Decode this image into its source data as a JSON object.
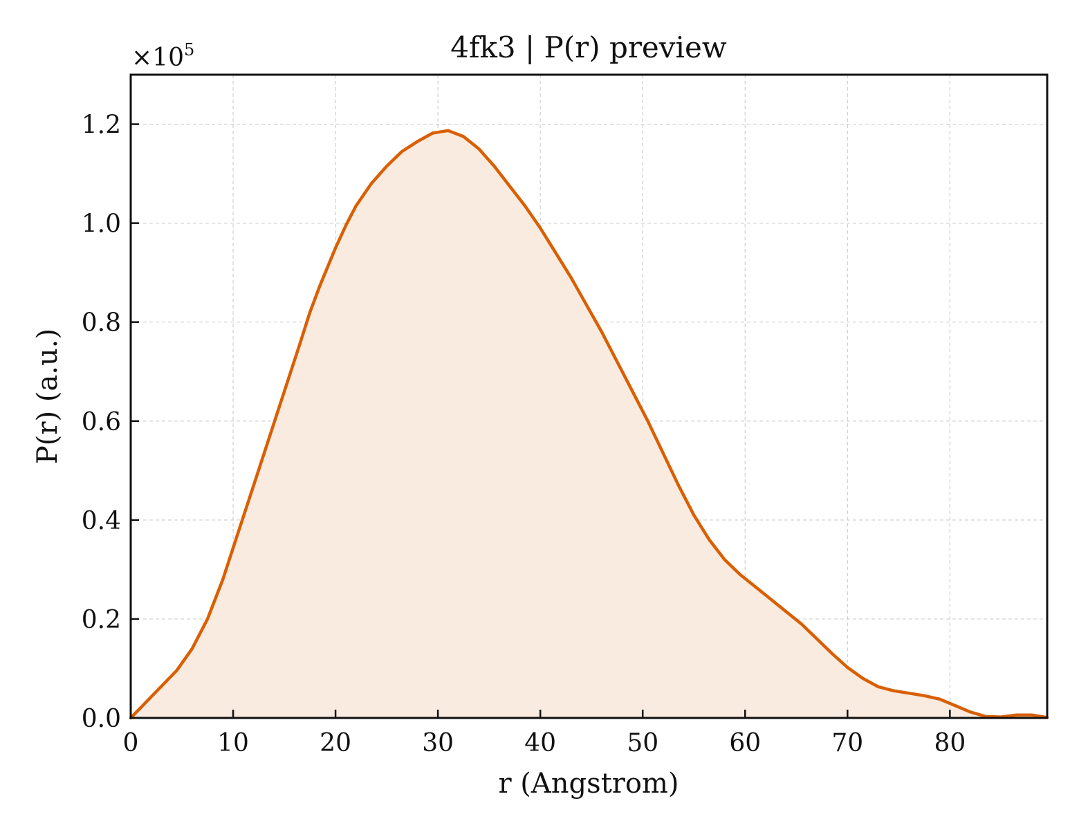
{
  "chart_data": {
    "type": "area",
    "title": "4fk3 | P(r) preview",
    "xlabel": "r (Angstrom)",
    "ylabel": "P(r) (a.u.)",
    "y_scale_label": "×10",
    "y_scale_exponent": "5",
    "xlim": [
      0,
      89.5
    ],
    "ylim": [
      0,
      1.3
    ],
    "x_ticks": [
      "0",
      "10",
      "20",
      "30",
      "40",
      "50",
      "60",
      "70",
      "80"
    ],
    "y_ticks": [
      "0.0",
      "0.2",
      "0.4",
      "0.6",
      "0.8",
      "1.0",
      "1.2"
    ],
    "grid": true,
    "line_color": "#d95f02",
    "fill_color": "#f9ebe0",
    "series": [
      {
        "x": [
          0,
          1.5,
          3,
          4.5,
          6,
          7.5,
          9,
          10.5,
          12,
          13.5,
          15,
          16.5,
          17.5,
          18.5,
          20,
          21,
          22,
          23.5,
          25,
          26.5,
          28,
          29.5,
          31,
          32.5,
          34,
          35.5,
          37,
          38.5,
          40,
          41.5,
          43,
          44.5,
          46,
          47.5,
          49,
          50.5,
          52,
          53.5,
          55,
          56.5,
          58,
          59.5,
          61,
          62.5,
          64,
          65.5,
          67,
          68.5,
          70,
          71.5,
          73,
          74.5,
          76,
          77.5,
          79,
          80.5,
          82,
          83.5,
          85,
          86.5,
          88,
          89.5
        ],
        "y": [
          0.0,
          0.032,
          0.064,
          0.096,
          0.14,
          0.2,
          0.28,
          0.375,
          0.47,
          0.565,
          0.66,
          0.755,
          0.82,
          0.875,
          0.95,
          0.995,
          1.035,
          1.08,
          1.115,
          1.145,
          1.165,
          1.182,
          1.187,
          1.175,
          1.15,
          1.115,
          1.075,
          1.035,
          0.99,
          0.94,
          0.89,
          0.835,
          0.78,
          0.72,
          0.66,
          0.6,
          0.535,
          0.47,
          0.41,
          0.36,
          0.32,
          0.29,
          0.265,
          0.24,
          0.215,
          0.19,
          0.16,
          0.13,
          0.102,
          0.08,
          0.063,
          0.055,
          0.05,
          0.045,
          0.038,
          0.025,
          0.012,
          0.003,
          0.002,
          0.006,
          0.006,
          0.001
        ]
      }
    ]
  }
}
